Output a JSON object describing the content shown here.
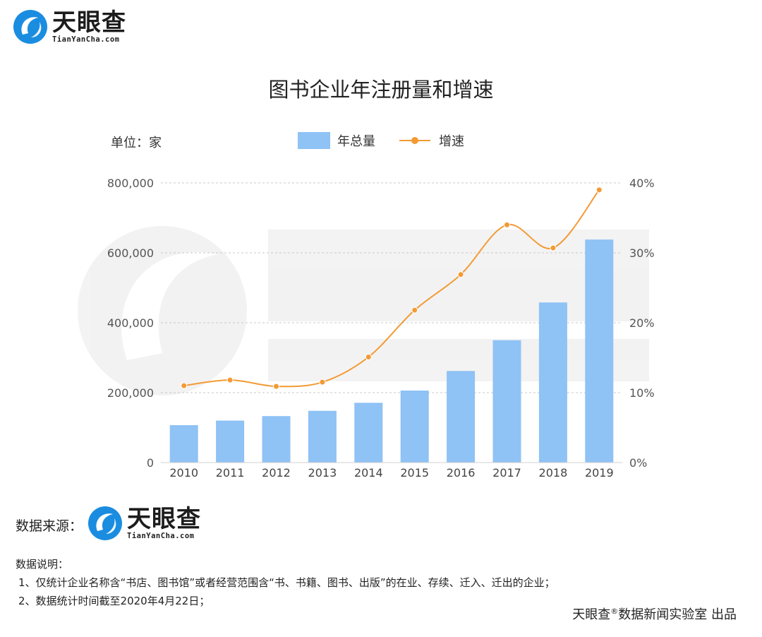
{
  "brand": {
    "name": "天眼查",
    "domain": "TianYanCha.com"
  },
  "chart_data": {
    "type": "bar",
    "title": "图书企业年注册量和增速",
    "unit": "单位：家",
    "categories": [
      "2010",
      "2011",
      "2012",
      "2013",
      "2014",
      "2015",
      "2016",
      "2017",
      "2018",
      "2019"
    ],
    "series": [
      {
        "name": "年总量",
        "type": "bar",
        "axis": "left",
        "color": "#8fc2f5",
        "values": [
          107000,
          120000,
          133000,
          148000,
          171000,
          206000,
          262000,
          350000,
          458000,
          638000
        ]
      },
      {
        "name": "增速",
        "type": "line",
        "axis": "right",
        "color": "#f39a33",
        "values": [
          11.0,
          11.8,
          10.9,
          11.5,
          15.1,
          21.8,
          26.9,
          34.0,
          30.7,
          39.0
        ]
      }
    ],
    "y_left": {
      "min": 0,
      "max": 800000,
      "ticks": [
        "0",
        "200,000",
        "400,000",
        "600,000",
        "800,000"
      ]
    },
    "y_right": {
      "min": 0,
      "max": 40,
      "ticks": [
        "0%",
        "10%",
        "20%",
        "30%",
        "40%"
      ]
    },
    "grid": true,
    "legend_position": "top-center"
  },
  "source": {
    "label": "数据来源："
  },
  "notes": {
    "title": "数据说明：",
    "lines": [
      "1、仅统计企业名称含“书店、图书馆”或者经营范围含“书、书籍、图书、出版”的在业、存续、迁入、迁出的企业；",
      "2、数据统计时间截至2020年4月22日；"
    ]
  },
  "footer": {
    "prefix": "天眼查",
    "mark": "®",
    "suffix": "数据新闻实验室 出品"
  }
}
